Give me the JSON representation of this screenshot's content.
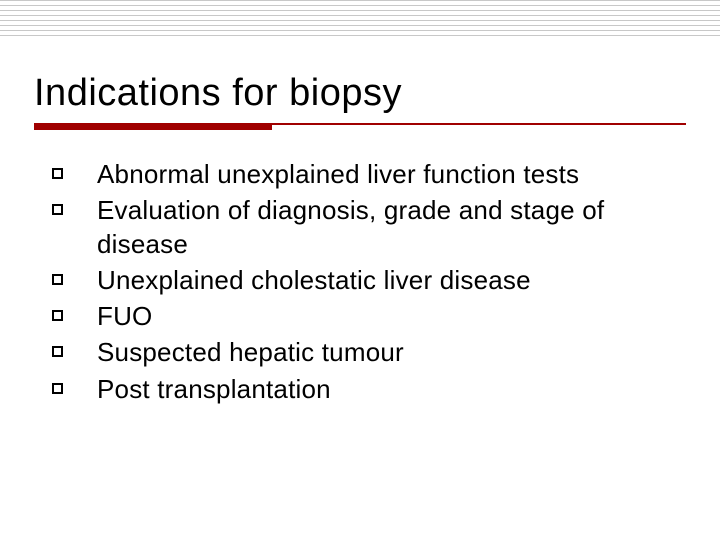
{
  "slide": {
    "title": "Indications for biopsy",
    "bullets": [
      "Abnormal unexplained liver function tests",
      "Evaluation of diagnosis, grade and stage of disease",
      "Unexplained cholestatic liver disease",
      "FUO",
      "Suspected hepatic tumour",
      "Post transplantation"
    ]
  },
  "style": {
    "accent_color": "#a00000",
    "text_color": "#000000",
    "background_color": "#ffffff",
    "topline_color": "#c8c8c8",
    "title_fontsize": 38,
    "body_fontsize": 26,
    "bullet_marker": "square-outline",
    "topline_count": 8,
    "accent_thick_width": 238,
    "accent_thick_height": 7,
    "accent_thin_height": 2
  }
}
